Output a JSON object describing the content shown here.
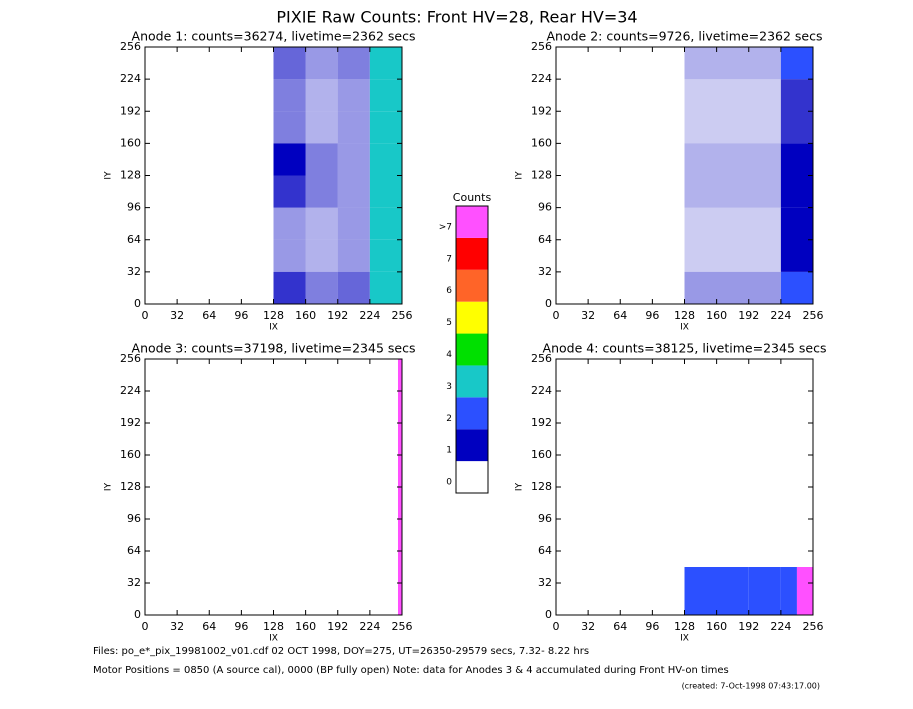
{
  "title": "PIXIE Raw Counts:  Front HV=28, Rear HV=34",
  "colorbar": {
    "title": "Counts",
    "colors": [
      "#ffffff",
      "#0000c0",
      "#2c50ff",
      "#18c8c8",
      "#00e000",
      "#ffff00",
      "#ff6428",
      "#ff0000",
      "#ff50ff"
    ],
    "ticks": [
      0,
      1,
      2,
      3,
      4,
      5,
      6,
      7,
      {
        "value": 8,
        "label": ">7"
      }
    ]
  },
  "chart_data": [
    {
      "type": "heatmap",
      "title": "Anode 1: counts=36274, livetime=2362 secs",
      "xlabel": "IX",
      "ylabel": "IY",
      "xlim": [
        0,
        256
      ],
      "ylim": [
        0,
        256
      ],
      "xticks": [
        0,
        32,
        64,
        96,
        128,
        160,
        192,
        224,
        256
      ],
      "yticks": [
        0,
        32,
        64,
        96,
        128,
        160,
        192,
        224,
        256
      ],
      "xbins": [
        0,
        128,
        160,
        192,
        224,
        256
      ],
      "ybins": [
        0,
        32,
        64,
        96,
        128,
        160,
        192,
        224,
        256
      ],
      "z": [
        [
          0,
          0.8,
          0.5,
          0.6,
          3
        ],
        [
          0,
          0.4,
          0.3,
          0.4,
          2.5
        ],
        [
          0,
          0.4,
          0.3,
          0.4,
          2.5
        ],
        [
          0,
          0.8,
          0.5,
          0.4,
          3
        ],
        [
          0,
          1,
          0.5,
          0.4,
          2.5
        ],
        [
          0,
          0.5,
          0.3,
          0.4,
          2.5
        ],
        [
          0,
          0.5,
          0.3,
          0.4,
          2.5
        ],
        [
          0,
          0.6,
          0.4,
          0.5,
          2.5
        ]
      ]
    },
    {
      "type": "heatmap",
      "title": "Anode 2: counts=9726, livetime=2362 secs",
      "xlabel": "IX",
      "ylabel": "IY",
      "xlim": [
        0,
        256
      ],
      "ylim": [
        0,
        256
      ],
      "xticks": [
        0,
        32,
        64,
        96,
        128,
        160,
        192,
        224,
        256
      ],
      "yticks": [
        0,
        32,
        64,
        96,
        128,
        160,
        192,
        224,
        256
      ],
      "xbins": [
        0,
        128,
        224,
        256
      ],
      "ybins": [
        0,
        32,
        96,
        160,
        224,
        256
      ],
      "z": [
        [
          0,
          0.4,
          1.5
        ],
        [
          0,
          0.2,
          1
        ],
        [
          0,
          0.3,
          1
        ],
        [
          0,
          0.2,
          0.8
        ],
        [
          0,
          0.3,
          1.2
        ]
      ]
    },
    {
      "type": "heatmap",
      "title": "Anode 3: counts=37198, livetime=2345 secs",
      "xlabel": "IX",
      "ylabel": "IY",
      "xlim": [
        0,
        256
      ],
      "ylim": [
        0,
        256
      ],
      "xticks": [
        0,
        32,
        64,
        96,
        128,
        160,
        192,
        224,
        256
      ],
      "yticks": [
        0,
        32,
        64,
        96,
        128,
        160,
        192,
        224,
        256
      ],
      "xbins": [
        0,
        252,
        256
      ],
      "ybins": [
        0,
        256
      ],
      "z": [
        [
          0,
          8
        ]
      ]
    },
    {
      "type": "heatmap",
      "title": "Anode 4: counts=38125, livetime=2345 secs",
      "xlabel": "IX",
      "ylabel": "IY",
      "xlim": [
        0,
        256
      ],
      "ylim": [
        0,
        256
      ],
      "xticks": [
        0,
        32,
        64,
        96,
        128,
        160,
        192,
        224,
        256
      ],
      "yticks": [
        0,
        32,
        64,
        96,
        128,
        160,
        192,
        224,
        256
      ],
      "xbins": [
        0,
        128,
        192,
        224,
        240,
        256
      ],
      "ybins": [
        0,
        48,
        256
      ],
      "z": [
        [
          0,
          1.2,
          1.5,
          2,
          8
        ],
        [
          0,
          0,
          0,
          0,
          0
        ]
      ]
    }
  ],
  "footer": {
    "files": "Files: po_e*_pix_19981002_v01.cdf   02 OCT 1998, DOY=275, UT=26350-29579 secs,  7.32- 8.22 hrs",
    "motor": "Motor Positions = 0850 (A source cal), 0000 (BP fully open)    Note: data for Anodes 3 & 4 accumulated during Front HV-on times",
    "created": "(created:  7-Oct-1998 07:43:17.00)"
  }
}
